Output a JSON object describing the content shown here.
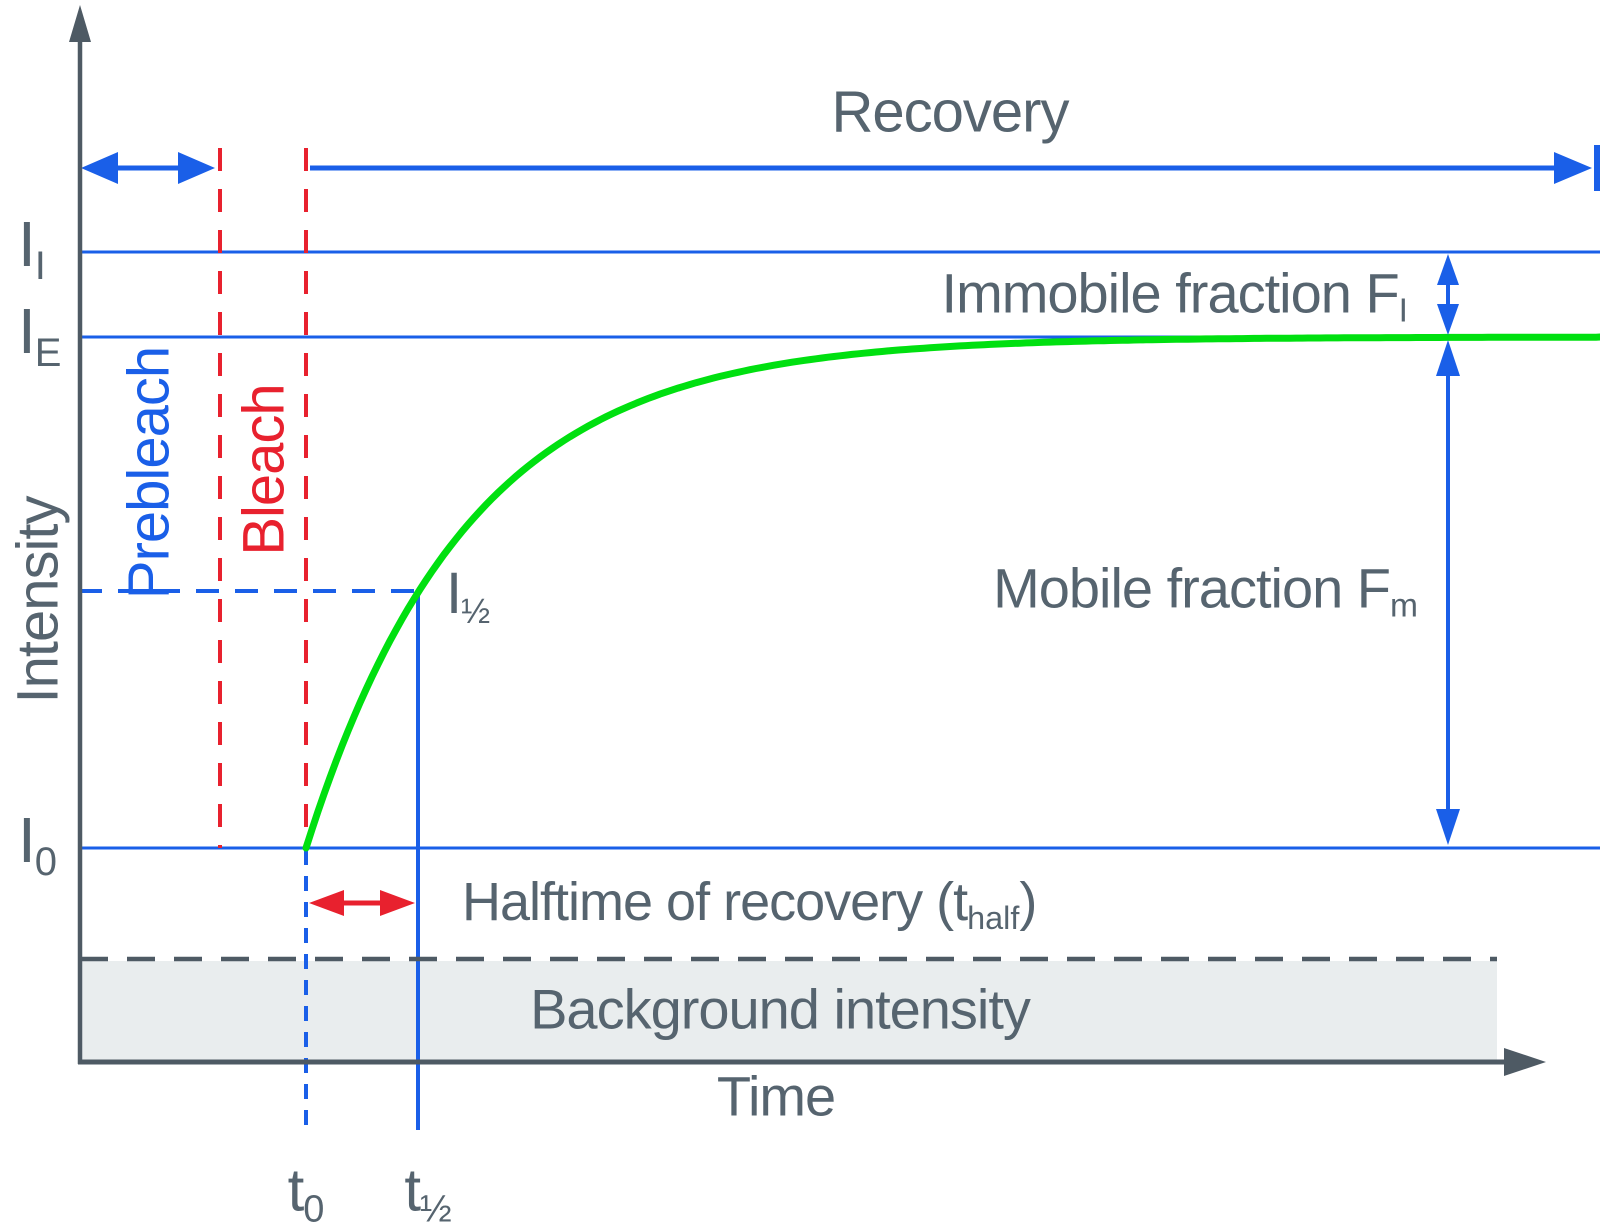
{
  "colors": {
    "blue": "#1a5fe8",
    "red": "#e8212e",
    "green": "#00e010",
    "text": "#56646f",
    "axis": "#4e5a64",
    "box": "#e9edee"
  },
  "axis_labels": {
    "y": "Intensity",
    "x": "Time"
  },
  "phases": {
    "prebleach": "Prebleach",
    "bleach": "Bleach",
    "recovery": "Recovery"
  },
  "intensity_levels": {
    "initial": {
      "main": "I",
      "sub": "I"
    },
    "end": {
      "main": "I",
      "sub": "E"
    },
    "bleach": {
      "main": "I",
      "sub": "0"
    },
    "half": {
      "main": "I",
      "sub": "½"
    }
  },
  "time_marks": {
    "t0": {
      "main": "t",
      "sub": "0"
    },
    "thalf": {
      "main": "t",
      "sub": "½"
    }
  },
  "annotations": {
    "immobile": {
      "text": "Immobile fraction F",
      "sub": "I"
    },
    "mobile": {
      "text": "Mobile fraction F",
      "sub": "m"
    },
    "halftime": {
      "pre": "Halftime of recovery (t",
      "sub": "half",
      "post": ")"
    },
    "background": "Background intensity"
  },
  "curve": {
    "type": "exponential-recovery",
    "description": "FRAP recovery curve rising from I0 at t0 toward plateau IE; half-recovery I½ reached at t½"
  }
}
